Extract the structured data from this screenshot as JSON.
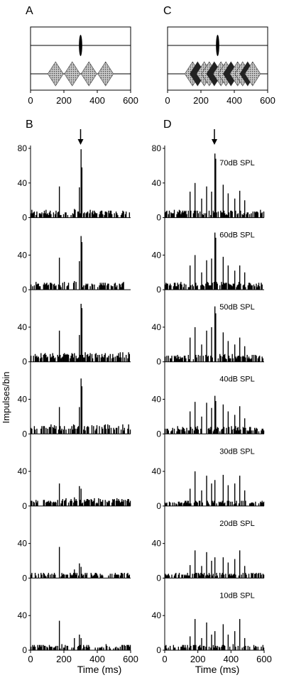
{
  "panels": {
    "A": "A",
    "B": "B",
    "C": "C",
    "D": "D"
  },
  "shared_axes": {
    "xlabel": "Time (ms)",
    "ylabel": "Impulses/bin"
  },
  "chart_data": [
    {
      "panel": "A",
      "type": "diagram",
      "xlim": [
        0,
        600
      ],
      "xticks": [
        0,
        200,
        400,
        600
      ],
      "tracks": [
        {
          "track": "upper",
          "shape": "narrow-pulse",
          "center_ms": 300
        },
        {
          "track": "lower",
          "shape": "diamond-train",
          "centers_ms": [
            150,
            250,
            350,
            450
          ]
        }
      ]
    },
    {
      "panel": "C",
      "type": "diagram",
      "xlim": [
        0,
        600
      ],
      "xticks": [
        0,
        200,
        400,
        600
      ],
      "tracks": [
        {
          "track": "upper",
          "shape": "narrow-pulse",
          "center_ms": 300
        },
        {
          "track": "lower",
          "shape": "diamond-train-overlapping",
          "centers_ms": [
            150,
            180,
            220,
            250,
            280,
            320,
            350,
            380,
            420,
            450,
            480,
            510
          ]
        }
      ]
    },
    {
      "panel": "B",
      "type": "bar",
      "xlim": [
        0,
        600
      ],
      "ylim": [
        0,
        80
      ],
      "xticks": [
        0,
        200,
        400,
        600
      ],
      "yticks": [
        0,
        40,
        80
      ],
      "marker_arrow_ms": 300,
      "subplots": [
        {
          "level": "70dB SPL",
          "label_shown": false,
          "baseline": 4,
          "peaks": [
            [
              170,
              36
            ],
            [
              260,
              10
            ],
            [
              290,
              35
            ],
            [
              300,
              79
            ],
            [
              305,
              58
            ]
          ]
        },
        {
          "level": "60dB SPL",
          "label_shown": false,
          "baseline": 4,
          "peaks": [
            [
              170,
              37
            ],
            [
              260,
              10
            ],
            [
              290,
              33
            ],
            [
              300,
              62
            ],
            [
              305,
              55
            ]
          ]
        },
        {
          "level": "50dB SPL",
          "label_shown": false,
          "baseline": 5,
          "peaks": [
            [
              170,
              36
            ],
            [
              260,
              10
            ],
            [
              290,
              31
            ],
            [
              300,
              67
            ],
            [
              305,
              62
            ]
          ]
        },
        {
          "level": "40dB SPL",
          "label_shown": false,
          "baseline": 5,
          "peaks": [
            [
              170,
              31
            ],
            [
              260,
              10
            ],
            [
              290,
              31
            ],
            [
              300,
              64
            ],
            [
              305,
              55
            ]
          ]
        },
        {
          "level": "30dB SPL",
          "label_shown": false,
          "baseline": 4,
          "peaks": [
            [
              170,
              26
            ],
            [
              260,
              10
            ],
            [
              290,
              23
            ],
            [
              300,
              20
            ]
          ]
        },
        {
          "level": "20dB SPL",
          "label_shown": false,
          "baseline": 3,
          "peaks": [
            [
              170,
              36
            ],
            [
              260,
              10
            ],
            [
              290,
              17
            ],
            [
              300,
              13
            ]
          ]
        },
        {
          "level": "10dB SPL",
          "label_shown": false,
          "baseline": 3,
          "peaks": [
            [
              170,
              34
            ],
            [
              260,
              14
            ],
            [
              290,
              18
            ],
            [
              300,
              14
            ]
          ]
        }
      ]
    },
    {
      "panel": "D",
      "type": "bar",
      "xlim": [
        0,
        600
      ],
      "ylim": [
        0,
        80
      ],
      "xticks": [
        0,
        200,
        400,
        600
      ],
      "yticks": [
        0,
        40,
        80
      ],
      "marker_arrow_ms": 300,
      "subplots": [
        {
          "level": "70dB SPL",
          "label_shown": true,
          "baseline": 4,
          "peaks": [
            [
              150,
              30
            ],
            [
              180,
              40
            ],
            [
              220,
              22
            ],
            [
              250,
              36
            ],
            [
              280,
              30
            ],
            [
              300,
              74
            ],
            [
              305,
              68
            ],
            [
              350,
              38
            ],
            [
              380,
              28
            ],
            [
              420,
              22
            ],
            [
              450,
              31
            ],
            [
              480,
              20
            ]
          ]
        },
        {
          "level": "60dB SPL",
          "label_shown": true,
          "baseline": 4,
          "peaks": [
            [
              150,
              28
            ],
            [
              180,
              40
            ],
            [
              220,
              20
            ],
            [
              250,
              34
            ],
            [
              280,
              36
            ],
            [
              300,
              66
            ],
            [
              305,
              60
            ],
            [
              350,
              38
            ],
            [
              380,
              28
            ],
            [
              420,
              22
            ],
            [
              450,
              28
            ],
            [
              480,
              20
            ]
          ]
        },
        {
          "level": "50dB SPL",
          "label_shown": true,
          "baseline": 4,
          "peaks": [
            [
              150,
              28
            ],
            [
              180,
              40
            ],
            [
              220,
              20
            ],
            [
              250,
              36
            ],
            [
              280,
              40
            ],
            [
              300,
              64
            ],
            [
              305,
              56
            ],
            [
              350,
              34
            ],
            [
              380,
              24
            ],
            [
              420,
              20
            ],
            [
              450,
              28
            ],
            [
              480,
              18
            ]
          ]
        },
        {
          "level": "40dB SPL",
          "label_shown": true,
          "baseline": 4,
          "peaks": [
            [
              150,
              26
            ],
            [
              180,
              37
            ],
            [
              220,
              20
            ],
            [
              250,
              36
            ],
            [
              280,
              30
            ],
            [
              300,
              44
            ],
            [
              305,
              38
            ],
            [
              350,
              34
            ],
            [
              380,
              26
            ],
            [
              420,
              22
            ],
            [
              450,
              32
            ],
            [
              480,
              18
            ]
          ]
        },
        {
          "level": "30dB SPL",
          "label_shown": true,
          "baseline": 3,
          "peaks": [
            [
              150,
              20
            ],
            [
              180,
              40
            ],
            [
              220,
              18
            ],
            [
              250,
              35
            ],
            [
              280,
              26
            ],
            [
              300,
              30
            ],
            [
              350,
              36
            ],
            [
              380,
              24
            ],
            [
              420,
              26
            ],
            [
              450,
              35
            ],
            [
              480,
              18
            ]
          ]
        },
        {
          "level": "20dB SPL",
          "label_shown": true,
          "baseline": 3,
          "peaks": [
            [
              150,
              15
            ],
            [
              180,
              32
            ],
            [
              220,
              14
            ],
            [
              250,
              30
            ],
            [
              280,
              20
            ],
            [
              300,
              24
            ],
            [
              350,
              24
            ],
            [
              380,
              18
            ],
            [
              420,
              22
            ],
            [
              450,
              32
            ],
            [
              480,
              14
            ]
          ]
        },
        {
          "level": "10dB SPL",
          "label_shown": true,
          "baseline": 3,
          "peaks": [
            [
              150,
              16
            ],
            [
              180,
              36
            ],
            [
              220,
              14
            ],
            [
              250,
              32
            ],
            [
              280,
              18
            ],
            [
              300,
              22
            ],
            [
              350,
              30
            ],
            [
              380,
              18
            ],
            [
              420,
              22
            ],
            [
              450,
              36
            ],
            [
              480,
              14
            ]
          ]
        }
      ]
    }
  ]
}
